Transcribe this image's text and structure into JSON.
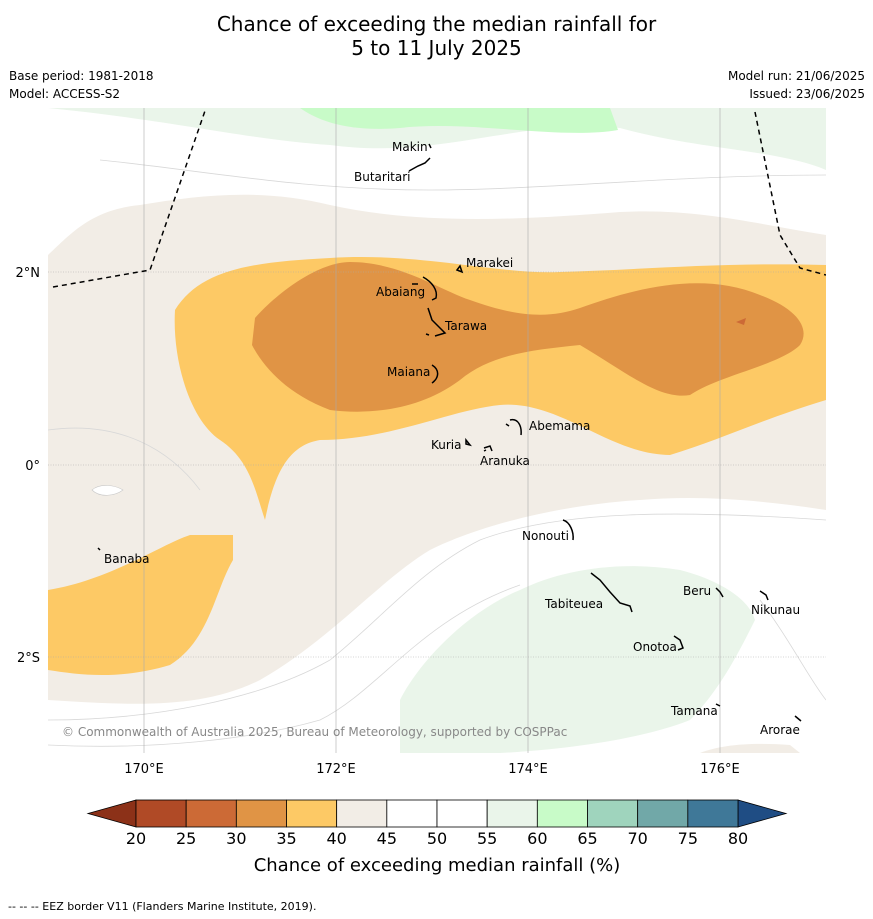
{
  "title_line1": "Chance of exceeding the median rainfall for",
  "title_line2": "5 to 11 July 2025",
  "base_period": "Base period: 1981-2018",
  "model": "Model: ACCESS-S2",
  "model_run": "Model run: 21/06/2025",
  "issued": "Issued: 23/06/2025",
  "lat_labels": [
    "2°N",
    "0°",
    "2°S"
  ],
  "lon_labels": [
    "170°E",
    "172°E",
    "174°E",
    "176°E"
  ],
  "islands": [
    "Makin",
    "Butaritari",
    "Marakei",
    "Abaiang",
    "Tarawa",
    "Maiana",
    "Abemama",
    "Kuria",
    "Aranuka",
    "Banaba",
    "Nonouti",
    "Beru",
    "Tabiteuea",
    "Nikunau",
    "Onotoa",
    "Tamana",
    "Arorae"
  ],
  "copyright": "© Commonwealth of Australia 2025, Bureau of Meteorology, supported by COSPPac",
  "colorbar": {
    "ticks": [
      "20",
      "25",
      "30",
      "35",
      "40",
      "45",
      "50",
      "55",
      "60",
      "65",
      "70",
      "75",
      "80"
    ],
    "colors": [
      "#b04a26",
      "#cc6a36",
      "#e09445",
      "#fdc965",
      "#f2ede6",
      "#ffffff",
      "#ffffff",
      "#eaf5ea",
      "#c8fbc8",
      "#9fd4bd",
      "#71a8a8",
      "#3f7898"
    ],
    "under_color": "#8c3118",
    "over_color": "#1f4d84",
    "label": "Chance of exceeding median rainfall (%)"
  },
  "footer": "--  --  -- EEZ border V11 (Flanders Marine Institute, 2019)."
}
